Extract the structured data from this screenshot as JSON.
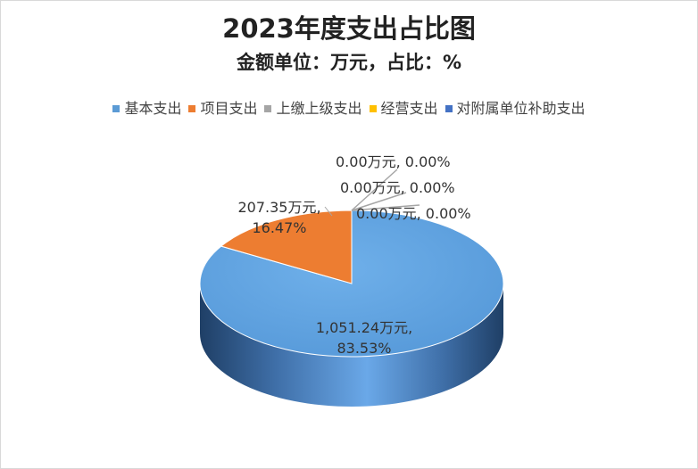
{
  "chart_data": {
    "type": "pie",
    "title": "2023年度支出占比图",
    "subtitle": "金额单位：万元，占比：%",
    "legend_position": "top",
    "three_d": true,
    "slices": [
      {
        "name": "基本支出",
        "value": 1051.24,
        "percent": 83.53,
        "label_line1": "1,051.24万元,",
        "label_line2": "83.53%",
        "color": "#5B9BD5"
      },
      {
        "name": "项目支出",
        "value": 207.35,
        "percent": 16.47,
        "label_line1": "207.35万元,",
        "label_line2": "16.47%",
        "color": "#ED7D31"
      },
      {
        "name": "上缴上级支出",
        "value": 0.0,
        "percent": 0.0,
        "label_line1": "0.00万元, 0.00%",
        "label_line2": "",
        "color": "#A5A5A5"
      },
      {
        "name": "经营支出",
        "value": 0.0,
        "percent": 0.0,
        "label_line1": "0.00万元, 0.00%",
        "label_line2": "",
        "color": "#FFC000"
      },
      {
        "name": "对附属单位补助支出",
        "value": 0.0,
        "percent": 0.0,
        "label_line1": "0.00万元, 0.00%",
        "label_line2": "",
        "color": "#4472C4"
      }
    ]
  }
}
